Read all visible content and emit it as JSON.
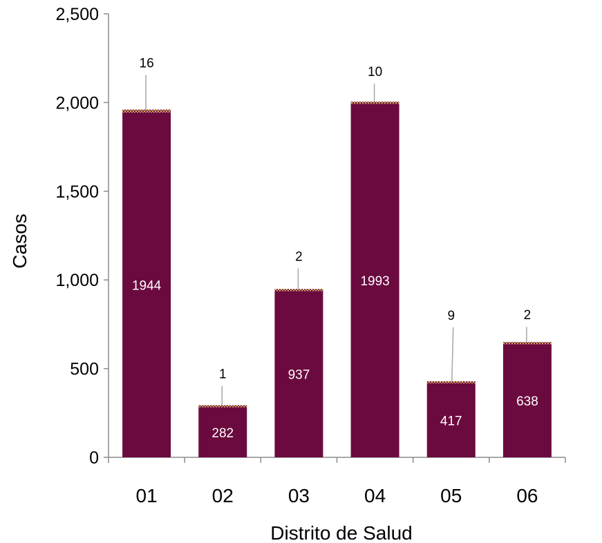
{
  "chart_data": {
    "type": "bar",
    "stacked": true,
    "xlabel": "Distrito de Salud",
    "ylabel": "Casos",
    "ylim": [
      0,
      2500
    ],
    "yticks": [
      0,
      500,
      1000,
      1500,
      2000,
      2500
    ],
    "ytick_labels": [
      "0",
      "500",
      "1,000",
      "1,500",
      "2,000",
      "2,500"
    ],
    "categories": [
      "01",
      "02",
      "03",
      "04",
      "05",
      "06"
    ],
    "series": [
      {
        "values": [
          1944,
          282,
          937,
          1993,
          417,
          638
        ],
        "color": "#6b0a3f",
        "label_position": "inside"
      },
      {
        "values": [
          16,
          1,
          2,
          10,
          9,
          2
        ],
        "color": "#c8a24a",
        "pattern": "dotted",
        "label_position": "callout"
      }
    ],
    "grid": false,
    "legend": "none"
  }
}
